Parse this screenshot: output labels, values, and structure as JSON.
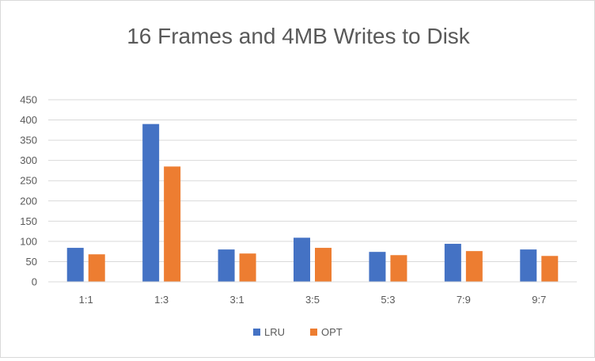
{
  "chart_data": {
    "type": "bar",
    "title": "16 Frames and 4MB Writes to Disk",
    "xlabel": "",
    "ylabel": "",
    "categories": [
      "1:1",
      "1:3",
      "3:1",
      "3:5",
      "5:3",
      "7:9",
      "9:7"
    ],
    "series": [
      {
        "name": "LRU",
        "color": "#4472c4",
        "values": [
          84,
          390,
          80,
          109,
          74,
          94,
          80
        ]
      },
      {
        "name": "OPT",
        "color": "#ed7d31",
        "values": [
          68,
          285,
          70,
          84,
          66,
          76,
          64
        ]
      }
    ],
    "ylim": [
      0,
      450
    ],
    "yticks": [
      "0",
      "50",
      "100",
      "150",
      "200",
      "250",
      "300",
      "350",
      "400",
      "450"
    ],
    "grid": true,
    "legend": "bottom"
  }
}
